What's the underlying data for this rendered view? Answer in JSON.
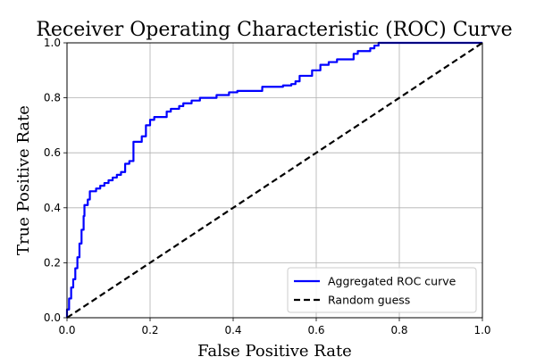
{
  "chart_data": {
    "type": "line",
    "title": "Receiver Operating Characteristic (ROC) Curve",
    "xlabel": "False Positive Rate",
    "ylabel": "True Positive Rate",
    "xlim": [
      0,
      1
    ],
    "ylim": [
      0,
      1
    ],
    "xticks": [
      "0.0",
      "0.2",
      "0.4",
      "0.6",
      "0.8",
      "1.0"
    ],
    "yticks": [
      "0.0",
      "0.2",
      "0.4",
      "0.6",
      "0.8",
      "1.0"
    ],
    "grid": true,
    "legend_position": "lower-right",
    "series": [
      {
        "name": "Aggregated ROC curve",
        "color": "#0000ff",
        "style": "solid",
        "points": [
          [
            0,
            0
          ],
          [
            0,
            0.03
          ],
          [
            0.005,
            0.03
          ],
          [
            0.005,
            0.07
          ],
          [
            0.01,
            0.07
          ],
          [
            0.01,
            0.11
          ],
          [
            0.015,
            0.11
          ],
          [
            0.015,
            0.14
          ],
          [
            0.02,
            0.14
          ],
          [
            0.02,
            0.18
          ],
          [
            0.025,
            0.18
          ],
          [
            0.025,
            0.22
          ],
          [
            0.03,
            0.22
          ],
          [
            0.03,
            0.27
          ],
          [
            0.035,
            0.27
          ],
          [
            0.035,
            0.32
          ],
          [
            0.04,
            0.32
          ],
          [
            0.04,
            0.37
          ],
          [
            0.042,
            0.37
          ],
          [
            0.042,
            0.41
          ],
          [
            0.05,
            0.41
          ],
          [
            0.05,
            0.43
          ],
          [
            0.055,
            0.43
          ],
          [
            0.055,
            0.46
          ],
          [
            0.07,
            0.46
          ],
          [
            0.07,
            0.47
          ],
          [
            0.08,
            0.47
          ],
          [
            0.08,
            0.48
          ],
          [
            0.09,
            0.48
          ],
          [
            0.09,
            0.49
          ],
          [
            0.1,
            0.49
          ],
          [
            0.1,
            0.5
          ],
          [
            0.11,
            0.5
          ],
          [
            0.11,
            0.51
          ],
          [
            0.12,
            0.51
          ],
          [
            0.12,
            0.52
          ],
          [
            0.13,
            0.52
          ],
          [
            0.13,
            0.53
          ],
          [
            0.14,
            0.53
          ],
          [
            0.14,
            0.56
          ],
          [
            0.15,
            0.56
          ],
          [
            0.15,
            0.57
          ],
          [
            0.16,
            0.57
          ],
          [
            0.16,
            0.64
          ],
          [
            0.18,
            0.64
          ],
          [
            0.18,
            0.66
          ],
          [
            0.19,
            0.66
          ],
          [
            0.19,
            0.7
          ],
          [
            0.2,
            0.7
          ],
          [
            0.2,
            0.72
          ],
          [
            0.21,
            0.72
          ],
          [
            0.21,
            0.73
          ],
          [
            0.24,
            0.73
          ],
          [
            0.24,
            0.75
          ],
          [
            0.25,
            0.75
          ],
          [
            0.25,
            0.76
          ],
          [
            0.27,
            0.76
          ],
          [
            0.27,
            0.77
          ],
          [
            0.28,
            0.77
          ],
          [
            0.28,
            0.78
          ],
          [
            0.3,
            0.78
          ],
          [
            0.3,
            0.79
          ],
          [
            0.32,
            0.79
          ],
          [
            0.32,
            0.8
          ],
          [
            0.36,
            0.8
          ],
          [
            0.36,
            0.81
          ],
          [
            0.39,
            0.81
          ],
          [
            0.39,
            0.82
          ],
          [
            0.41,
            0.82
          ],
          [
            0.41,
            0.825
          ],
          [
            0.47,
            0.825
          ],
          [
            0.47,
            0.84
          ],
          [
            0.52,
            0.84
          ],
          [
            0.52,
            0.845
          ],
          [
            0.54,
            0.845
          ],
          [
            0.54,
            0.85
          ],
          [
            0.55,
            0.85
          ],
          [
            0.55,
            0.86
          ],
          [
            0.56,
            0.86
          ],
          [
            0.56,
            0.88
          ],
          [
            0.59,
            0.88
          ],
          [
            0.59,
            0.9
          ],
          [
            0.61,
            0.9
          ],
          [
            0.61,
            0.92
          ],
          [
            0.63,
            0.92
          ],
          [
            0.63,
            0.93
          ],
          [
            0.65,
            0.93
          ],
          [
            0.65,
            0.94
          ],
          [
            0.69,
            0.94
          ],
          [
            0.69,
            0.96
          ],
          [
            0.7,
            0.96
          ],
          [
            0.7,
            0.97
          ],
          [
            0.73,
            0.97
          ],
          [
            0.73,
            0.98
          ],
          [
            0.74,
            0.98
          ],
          [
            0.74,
            0.99
          ],
          [
            0.75,
            0.99
          ],
          [
            0.75,
            1.0
          ],
          [
            1.0,
            1.0
          ]
        ]
      },
      {
        "name": "Random guess",
        "color": "#000000",
        "style": "dashed",
        "points": [
          [
            0,
            0
          ],
          [
            1,
            1
          ]
        ]
      }
    ]
  }
}
